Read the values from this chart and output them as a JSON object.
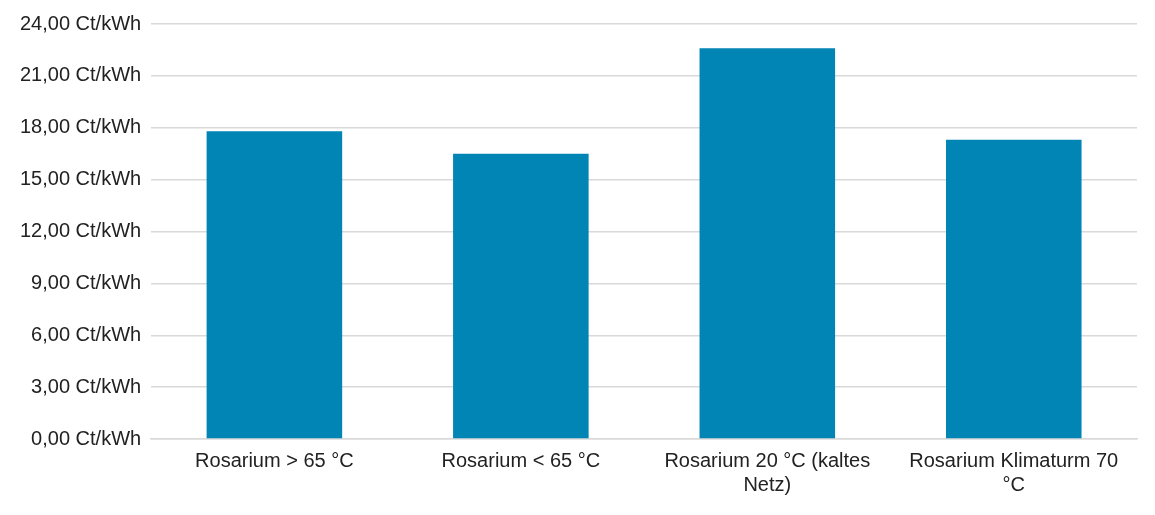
{
  "chart_data": {
    "type": "bar",
    "categories": [
      "Rosarium > 65 °C",
      "Rosarium < 65 °C",
      "Rosarium 20 °C (kaltes Netz)",
      "Rosarium Klimaturm 70 °C"
    ],
    "values": [
      17.8,
      16.5,
      22.6,
      17.3
    ],
    "color": "#0085b5",
    "ylim": [
      0,
      24
    ],
    "yticks": [
      {
        "value": 0,
        "label": "0,00 Ct/kWh"
      },
      {
        "value": 3,
        "label": "3,00 Ct/kWh"
      },
      {
        "value": 6,
        "label": "6,00 Ct/kWh"
      },
      {
        "value": 9,
        "label": "9,00 Ct/kWh"
      },
      {
        "value": 12,
        "label": "12,00 Ct/kWh"
      },
      {
        "value": 15,
        "label": "15,00 Ct/kWh"
      },
      {
        "value": 18,
        "label": "18,00 Ct/kWh"
      },
      {
        "value": 21,
        "label": "21,00 Ct/kWh"
      },
      {
        "value": 24,
        "label": "24,00 Ct/kWh"
      }
    ],
    "grid": "y",
    "legend": false
  }
}
